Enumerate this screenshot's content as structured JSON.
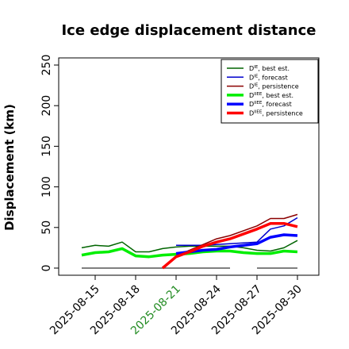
{
  "chart_data": {
    "type": "line",
    "title": "Ice edge displacement distance",
    "xlabel": "",
    "ylabel": "Displacement (km)",
    "ylim": [
      0,
      260
    ],
    "xlim": [
      "2025-08-12",
      "2025-08-31"
    ],
    "yticks": [
      0,
      50,
      100,
      150,
      200,
      250
    ],
    "xticks": [
      {
        "date": "2025-08-15",
        "label": "2025-08-15",
        "color": "#000000"
      },
      {
        "date": "2025-08-18",
        "label": "2025-08-18",
        "color": "#000000"
      },
      {
        "date": "2025-08-21",
        "label": "2025-08-21",
        "color": "#228B22"
      },
      {
        "date": "2025-08-24",
        "label": "2025-08-24",
        "color": "#000000"
      },
      {
        "date": "2025-08-27",
        "label": "2025-08-27",
        "color": "#000000"
      },
      {
        "date": "2025-08-30",
        "label": "2025-08-30",
        "color": "#000000"
      }
    ],
    "legend_position": "top-right",
    "series": [
      {
        "name": "D^IE, best est.",
        "legend_base": "D",
        "legend_sup": "IE",
        "legend_rest": ", best est.",
        "color": "#006400",
        "width": 1.5,
        "points": [
          [
            "2025-08-14",
            25
          ],
          [
            "2025-08-15",
            28
          ],
          [
            "2025-08-16",
            27
          ],
          [
            "2025-08-17",
            32
          ],
          [
            "2025-08-18",
            20
          ],
          [
            "2025-08-19",
            20
          ],
          [
            "2025-08-20",
            24
          ],
          [
            "2025-08-21",
            26
          ],
          [
            "2025-08-22",
            27
          ],
          [
            "2025-08-23",
            27
          ],
          [
            "2025-08-24",
            27
          ],
          [
            "2025-08-25",
            27
          ],
          [
            "2025-08-26",
            25
          ],
          [
            "2025-08-27",
            22
          ],
          [
            "2025-08-28",
            21
          ],
          [
            "2025-08-29",
            25
          ],
          [
            "2025-08-30",
            34
          ]
        ]
      },
      {
        "name": "D^IE, forecast",
        "legend_base": "D",
        "legend_sup": "IE",
        "legend_rest": ", forecast",
        "color": "#0000CD",
        "width": 1.5,
        "points": [
          [
            "2025-08-21",
            28
          ],
          [
            "2025-08-22",
            28
          ],
          [
            "2025-08-23",
            28
          ],
          [
            "2025-08-24",
            29
          ],
          [
            "2025-08-27",
            32
          ],
          [
            "2025-08-28",
            48
          ],
          [
            "2025-08-29",
            52
          ],
          [
            "2025-08-30",
            62
          ]
        ]
      },
      {
        "name": "D^IE, persistence",
        "legend_base": "D",
        "legend_sup": "IE",
        "legend_rest": ", persistence",
        "color": "#8B0000",
        "width": 1.5,
        "points": [
          [
            "2025-08-21",
            15
          ],
          [
            "2025-08-22",
            22
          ],
          [
            "2025-08-23",
            29
          ],
          [
            "2025-08-24",
            36
          ],
          [
            "2025-08-25",
            40
          ],
          [
            "2025-08-27",
            52
          ],
          [
            "2025-08-28",
            61
          ],
          [
            "2025-08-29",
            61
          ],
          [
            "2025-08-30",
            66
          ]
        ]
      },
      {
        "name": "D^IIEE, best est.",
        "legend_base": "D",
        "legend_sup": "IIEE",
        "legend_rest": ", best est.",
        "color": "#00EE00",
        "width": 3.5,
        "points": [
          [
            "2025-08-14",
            16
          ],
          [
            "2025-08-15",
            19
          ],
          [
            "2025-08-16",
            20
          ],
          [
            "2025-08-17",
            24
          ],
          [
            "2025-08-18",
            15
          ],
          [
            "2025-08-19",
            14
          ],
          [
            "2025-08-20",
            16
          ],
          [
            "2025-08-21",
            17
          ],
          [
            "2025-08-22",
            18
          ],
          [
            "2025-08-23",
            20
          ],
          [
            "2025-08-24",
            21
          ],
          [
            "2025-08-25",
            21
          ],
          [
            "2025-08-26",
            19
          ],
          [
            "2025-08-27",
            18
          ],
          [
            "2025-08-28",
            18
          ],
          [
            "2025-08-29",
            21
          ],
          [
            "2025-08-30",
            20
          ]
        ]
      },
      {
        "name": "D^IIEE, forecast",
        "legend_base": "D",
        "legend_sup": "IIEE",
        "legend_rest": ", forecast",
        "color": "#0000FF",
        "width": 3.5,
        "points": [
          [
            "2025-08-21",
            18
          ],
          [
            "2025-08-22",
            20
          ],
          [
            "2025-08-23",
            22
          ],
          [
            "2025-08-24",
            23
          ],
          [
            "2025-08-25",
            26
          ],
          [
            "2025-08-27",
            30
          ],
          [
            "2025-08-28",
            38
          ],
          [
            "2025-08-29",
            41
          ],
          [
            "2025-08-30",
            40
          ]
        ]
      },
      {
        "name": "D^IIEE, persistence",
        "legend_base": "D",
        "legend_sup": "IIEE",
        "legend_rest": ", persistence",
        "color": "#FF0000",
        "width": 3.5,
        "points": [
          [
            "2025-08-20",
            0
          ],
          [
            "2025-08-21",
            14
          ],
          [
            "2025-08-22",
            20
          ],
          [
            "2025-08-23",
            27
          ],
          [
            "2025-08-24",
            32
          ],
          [
            "2025-08-25",
            36
          ],
          [
            "2025-08-27",
            48
          ],
          [
            "2025-08-28",
            55
          ],
          [
            "2025-08-29",
            55
          ],
          [
            "2025-08-30",
            51
          ]
        ]
      }
    ],
    "reference_segments": [
      {
        "color": "#555555",
        "x0": "2025-08-14",
        "x1": "2025-08-25",
        "y": 0
      },
      {
        "color": "#555555",
        "x0": "2025-08-27",
        "x1": "2025-08-30",
        "y": 0
      }
    ]
  }
}
